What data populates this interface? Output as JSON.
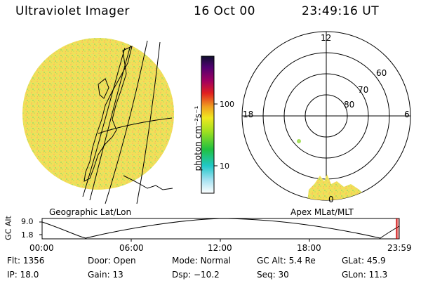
{
  "header": {
    "instrument": "Ultraviolet Imager",
    "date": "16 Oct 00",
    "time": "23:49:16 UT"
  },
  "colorbar": {
    "unit_label": "photon cm⁻²s⁻¹",
    "tick_labels": [
      "100",
      "10"
    ]
  },
  "polar_plot": {
    "mlt_labels": [
      "12",
      "18",
      "6",
      "0"
    ],
    "lat_labels": [
      "60",
      "70",
      "80"
    ],
    "caption": "Apex MLat/MLT"
  },
  "geographic": {
    "caption": "Geographic Lat/Lon"
  },
  "timeline": {
    "ylabel": "GC Alt",
    "ytick_labels": [
      "9.0",
      "1.8"
    ],
    "xtick_labels": [
      "00:00",
      "06:00",
      "12:00",
      "18:00",
      "23:59"
    ]
  },
  "info": {
    "row1": [
      {
        "label": "Flt:",
        "value": "1356"
      },
      {
        "label": "Door:",
        "value": "Open"
      },
      {
        "label": "Mode:",
        "value": "Normal"
      },
      {
        "label": "GC Alt:",
        "value": "5.4 Re"
      },
      {
        "label": "GLat:",
        "value": "45.9"
      }
    ],
    "row2": [
      {
        "label": "IP:",
        "value": "18.0"
      },
      {
        "label": "Gain:",
        "value": "13"
      },
      {
        "label": "Dsp:",
        "value": "−10.2"
      },
      {
        "label": "Seq:",
        "value": "30"
      },
      {
        "label": "GLon:",
        "value": "11.3"
      }
    ]
  },
  "colors": {
    "image_base": "#f0dc50",
    "image_low": "#b8d850",
    "auroral": "#e8e060",
    "accent_red": "#cc0000"
  }
}
